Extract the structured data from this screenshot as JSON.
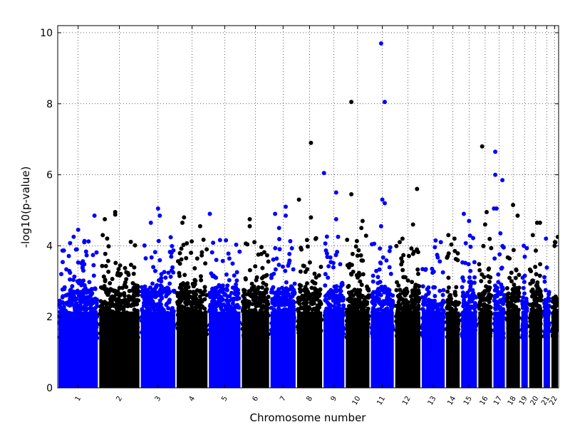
{
  "chart_data": {
    "type": "scatter",
    "subtype": "manhattan",
    "title": "",
    "xlabel": "Chromosome number",
    "ylabel": "-log10(p-value)",
    "ylim": [
      0,
      10.2
    ],
    "yticks": [
      0,
      2,
      4,
      6,
      8,
      10
    ],
    "grid": true,
    "grid_style": "dotted",
    "legend": "none",
    "colors": {
      "odd_chromosome": "#0000ff",
      "even_chromosome": "#000000"
    },
    "chromosomes": [
      {
        "label": "1",
        "color": "#0000ff",
        "max_y": 4.85,
        "peaks": [
          {
            "offset": 0.9,
            "y": 4.85
          },
          {
            "offset": 0.5,
            "y": 4.45
          },
          {
            "offset": 0.65,
            "y": 4.1
          }
        ]
      },
      {
        "label": "2",
        "color": "#000000",
        "max_y": 4.95,
        "peaks": [
          {
            "offset": 0.4,
            "y": 4.95
          },
          {
            "offset": 0.4,
            "y": 4.88
          },
          {
            "offset": 0.15,
            "y": 4.75
          },
          {
            "offset": 0.1,
            "y": 4.3
          }
        ]
      },
      {
        "label": "3",
        "color": "#0000ff",
        "max_y": 5.05,
        "peaks": [
          {
            "offset": 0.5,
            "y": 5.05
          },
          {
            "offset": 0.3,
            "y": 4.65
          },
          {
            "offset": 0.55,
            "y": 4.85
          }
        ]
      },
      {
        "label": "4",
        "color": "#000000",
        "max_y": 4.8,
        "peaks": [
          {
            "offset": 0.25,
            "y": 4.8
          },
          {
            "offset": 0.75,
            "y": 4.55
          },
          {
            "offset": 0.2,
            "y": 4.65
          }
        ]
      },
      {
        "label": "5",
        "color": "#0000ff",
        "max_y": 4.9,
        "peaks": [
          {
            "offset": 0.05,
            "y": 4.9
          }
        ]
      },
      {
        "label": "6",
        "color": "#000000",
        "max_y": 4.75,
        "peaks": [
          {
            "offset": 0.3,
            "y": 4.75
          },
          {
            "offset": 0.3,
            "y": 4.55
          }
        ]
      },
      {
        "label": "7",
        "color": "#0000ff",
        "max_y": 5.1,
        "peaks": [
          {
            "offset": 0.6,
            "y": 5.1
          },
          {
            "offset": 0.2,
            "y": 4.9
          },
          {
            "offset": 0.6,
            "y": 4.85
          },
          {
            "offset": 0.35,
            "y": 4.5
          }
        ]
      },
      {
        "label": "8",
        "color": "#000000",
        "max_y": 6.9,
        "peaks": [
          {
            "offset": 0.55,
            "y": 6.9
          },
          {
            "offset": 0.1,
            "y": 5.3
          },
          {
            "offset": 0.55,
            "y": 4.8
          }
        ]
      },
      {
        "label": "9",
        "color": "#0000ff",
        "max_y": 6.05,
        "peaks": [
          {
            "offset": 0.05,
            "y": 6.05
          },
          {
            "offset": 0.6,
            "y": 5.5
          },
          {
            "offset": 0.6,
            "y": 4.75
          }
        ]
      },
      {
        "label": "10",
        "color": "#000000",
        "max_y": 8.05,
        "peaks": [
          {
            "offset": 0.25,
            "y": 8.05
          },
          {
            "offset": 0.25,
            "y": 5.45
          },
          {
            "offset": 0.7,
            "y": 4.7
          },
          {
            "offset": 0.65,
            "y": 4.5
          }
        ]
      },
      {
        "label": "11",
        "color": "#0000ff",
        "max_y": 9.7,
        "peaks": [
          {
            "offset": 0.45,
            "y": 9.7
          },
          {
            "offset": 0.6,
            "y": 8.05
          },
          {
            "offset": 0.5,
            "y": 5.3
          },
          {
            "offset": 0.6,
            "y": 5.2
          },
          {
            "offset": 0.45,
            "y": 4.55
          }
        ]
      },
      {
        "label": "12",
        "color": "#000000",
        "max_y": 5.6,
        "peaks": [
          {
            "offset": 0.85,
            "y": 5.6
          },
          {
            "offset": 0.3,
            "y": 4.2
          },
          {
            "offset": 0.7,
            "y": 4.6
          }
        ]
      },
      {
        "label": "13",
        "color": "#0000ff",
        "max_y": 4.15,
        "peaks": [
          {
            "offset": 0.6,
            "y": 4.15
          }
        ]
      },
      {
        "label": "14",
        "color": "#000000",
        "max_y": 4.3,
        "peaks": [
          {
            "offset": 0.2,
            "y": 4.3
          },
          {
            "offset": 0.6,
            "y": 4.2
          }
        ]
      },
      {
        "label": "15",
        "color": "#0000ff",
        "max_y": 4.9,
        "peaks": [
          {
            "offset": 0.2,
            "y": 4.9
          },
          {
            "offset": 0.5,
            "y": 4.7
          }
        ]
      },
      {
        "label": "16",
        "color": "#000000",
        "max_y": 6.8,
        "peaks": [
          {
            "offset": 0.3,
            "y": 6.8
          },
          {
            "offset": 0.6,
            "y": 4.95
          },
          {
            "offset": 0.5,
            "y": 4.6
          }
        ]
      },
      {
        "label": "17",
        "color": "#0000ff",
        "max_y": 6.65,
        "peaks": [
          {
            "offset": 0.2,
            "y": 6.65
          },
          {
            "offset": 0.2,
            "y": 6.0
          },
          {
            "offset": 0.75,
            "y": 5.85
          },
          {
            "offset": 0.3,
            "y": 5.05
          },
          {
            "offset": 0.1,
            "y": 5.05
          },
          {
            "offset": 0.6,
            "y": 4.35
          }
        ]
      },
      {
        "label": "18",
        "color": "#000000",
        "max_y": 5.15,
        "peaks": [
          {
            "offset": 0.5,
            "y": 5.15
          },
          {
            "offset": 0.8,
            "y": 4.85
          }
        ]
      },
      {
        "label": "19",
        "color": "#0000ff",
        "max_y": 4.0,
        "peaks": [
          {
            "offset": 0.4,
            "y": 4.0
          }
        ]
      },
      {
        "label": "20",
        "color": "#000000",
        "max_y": 4.65,
        "peaks": [
          {
            "offset": 0.6,
            "y": 4.65
          },
          {
            "offset": 0.8,
            "y": 4.65
          },
          {
            "offset": 0.3,
            "y": 4.3
          }
        ]
      },
      {
        "label": "21",
        "color": "#0000ff",
        "max_y": 4.2,
        "peaks": [
          {
            "offset": 0.4,
            "y": 4.2
          }
        ]
      },
      {
        "label": "22",
        "color": "#000000",
        "max_y": 4.25,
        "peaks": [
          {
            "offset": 0.9,
            "y": 4.25
          }
        ]
      }
    ]
  }
}
